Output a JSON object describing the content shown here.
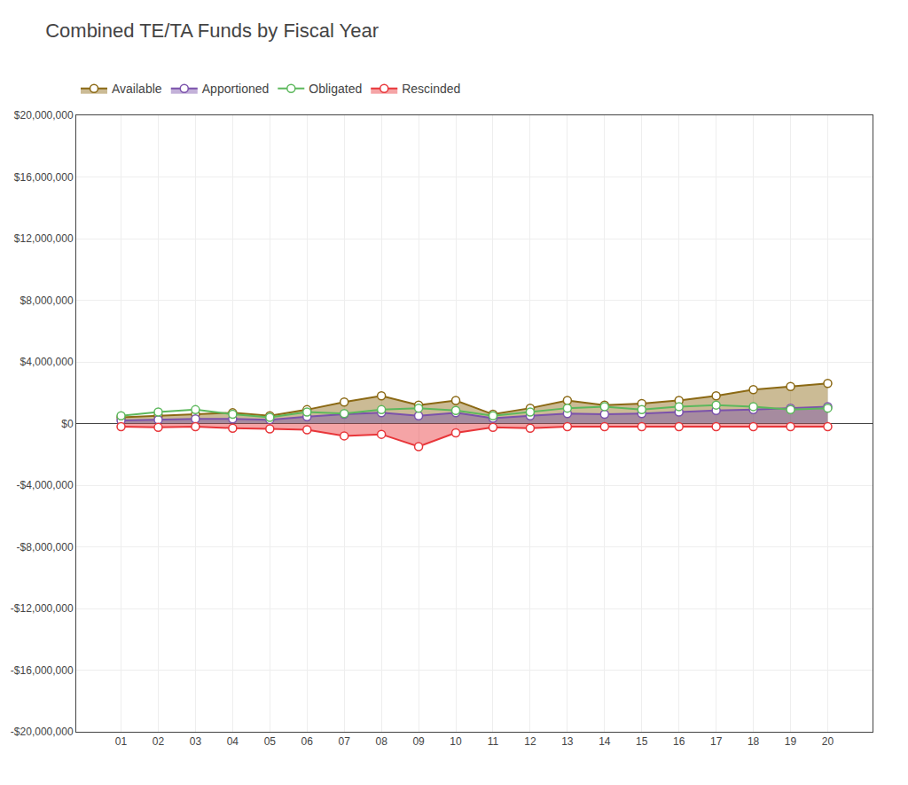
{
  "chart_data": {
    "type": "line",
    "title": "Combined TE/TA Funds by Fiscal Year",
    "categories": [
      "01",
      "02",
      "03",
      "04",
      "05",
      "06",
      "07",
      "08",
      "09",
      "10",
      "11",
      "12",
      "13",
      "14",
      "15",
      "16",
      "17",
      "18",
      "19",
      "20"
    ],
    "series": [
      {
        "name": "Available",
        "color": "#8B6914",
        "type": "area",
        "marker": "circle",
        "values": [
          400000,
          500000,
          600000,
          700000,
          500000,
          900000,
          1400000,
          1800000,
          1200000,
          1500000,
          600000,
          1000000,
          1500000,
          1200000,
          1300000,
          1500000,
          1800000,
          2200000,
          2400000,
          2600000
        ]
      },
      {
        "name": "Apportioned",
        "color": "#7B52AB",
        "type": "area",
        "marker": "circle",
        "values": [
          200000,
          250000,
          300000,
          300000,
          250000,
          450000,
          600000,
          700000,
          500000,
          700000,
          350000,
          500000,
          650000,
          600000,
          650000,
          750000,
          850000,
          900000,
          1000000,
          1100000
        ]
      },
      {
        "name": "Obligated",
        "color": "#5CB85C",
        "type": "line",
        "marker": "circle",
        "values": [
          500000,
          750000,
          900000,
          600000,
          400000,
          750000,
          650000,
          900000,
          1000000,
          850000,
          500000,
          750000,
          1000000,
          1100000,
          900000,
          1100000,
          1200000,
          1100000,
          900000,
          1000000
        ]
      },
      {
        "name": "Rescinded",
        "color": "#E8363A",
        "type": "area",
        "marker": "circle",
        "values": [
          -200000,
          -250000,
          -200000,
          -300000,
          -350000,
          -400000,
          -800000,
          -700000,
          -1500000,
          -600000,
          -250000,
          -300000,
          -200000,
          -200000,
          -200000,
          -200000,
          -200000,
          -200000,
          -200000,
          -200000
        ]
      }
    ],
    "ylim": [
      -20000000,
      20000000
    ],
    "yticks": [
      {
        "value": -20000000,
        "label": "-$20,000,000"
      },
      {
        "value": -16000000,
        "label": "-$16,000,000"
      },
      {
        "value": -12000000,
        "label": "-$12,000,000"
      },
      {
        "value": -8000000,
        "label": "-$8,000,000"
      },
      {
        "value": -4000000,
        "label": "-$4,000,000"
      },
      {
        "value": 0,
        "label": "$0"
      },
      {
        "value": 4000000,
        "label": "$4,000,000"
      },
      {
        "value": 8000000,
        "label": "$8,000,000"
      },
      {
        "value": 12000000,
        "label": "$12,000,000"
      },
      {
        "value": 16000000,
        "label": "$16,000,000"
      },
      {
        "value": 20000000,
        "label": "$20,000,000"
      }
    ],
    "grid": true
  }
}
